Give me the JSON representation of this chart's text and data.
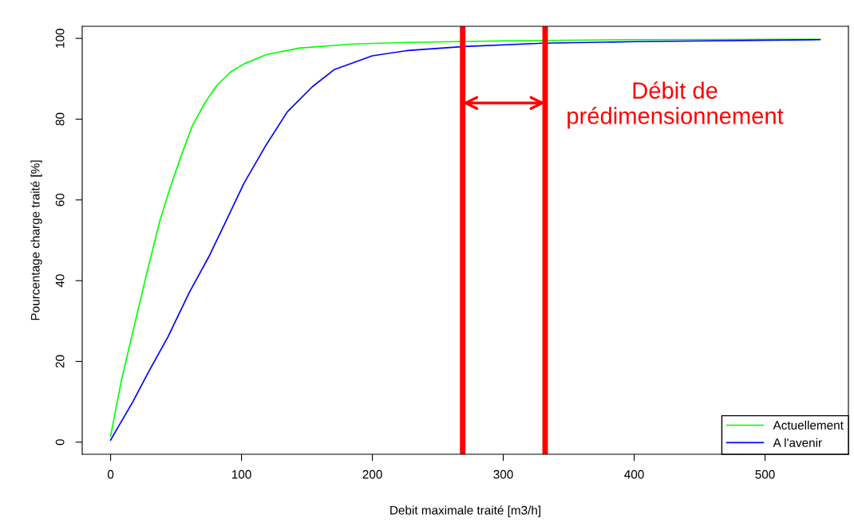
{
  "chart_data": {
    "type": "line",
    "xlabel": "Debit maximale traité [m3/h]",
    "ylabel": "Pourcentage charge traité [%]",
    "xlim": [
      -21.7,
      563.7
    ],
    "ylim": [
      -3,
      103
    ],
    "xticks": [
      0,
      100,
      200,
      300,
      400,
      500
    ],
    "yticks": [
      0,
      20,
      40,
      60,
      80,
      100
    ],
    "grid": false,
    "legend": "bottom right",
    "marker": "none",
    "line_style": "solid",
    "series": [
      {
        "name": "Actuellement",
        "color": "#00ff00",
        "x": [
          0,
          8.3,
          16.7,
          27,
          37.5,
          46,
          54,
          62.5,
          72,
          81,
          91.7,
          102,
          119,
          144,
          185,
          227,
          300,
          400,
          542
        ],
        "values": [
          1.5,
          15.4,
          26.9,
          41,
          54.7,
          63.5,
          71,
          78.4,
          84,
          88.3,
          91.7,
          93.7,
          96,
          97.6,
          98.6,
          99,
          99.4,
          99.7,
          99.8
        ]
      },
      {
        "name": "A l'avenir",
        "color": "#0000ff",
        "x": [
          0,
          6,
          17,
          29,
          44,
          60,
          75,
          90,
          102,
          119,
          135,
          154,
          171,
          200,
          227,
          270,
          330,
          400,
          542
        ],
        "values": [
          0.5,
          3.9,
          10,
          17.4,
          26.2,
          37,
          45.9,
          56,
          64.2,
          73.7,
          81.8,
          88,
          92.3,
          95.7,
          97,
          98,
          98.8,
          99.2,
          99.7
        ]
      }
    ],
    "ref_lines": [
      {
        "axis": "x",
        "value": 269,
        "color": "#ff0000"
      },
      {
        "axis": "x",
        "value": 332,
        "color": "#ff0000"
      }
    ],
    "annotations": [
      {
        "text": "Débit de\nprédimensionnement",
        "x": 332,
        "y": 84
      }
    ]
  }
}
